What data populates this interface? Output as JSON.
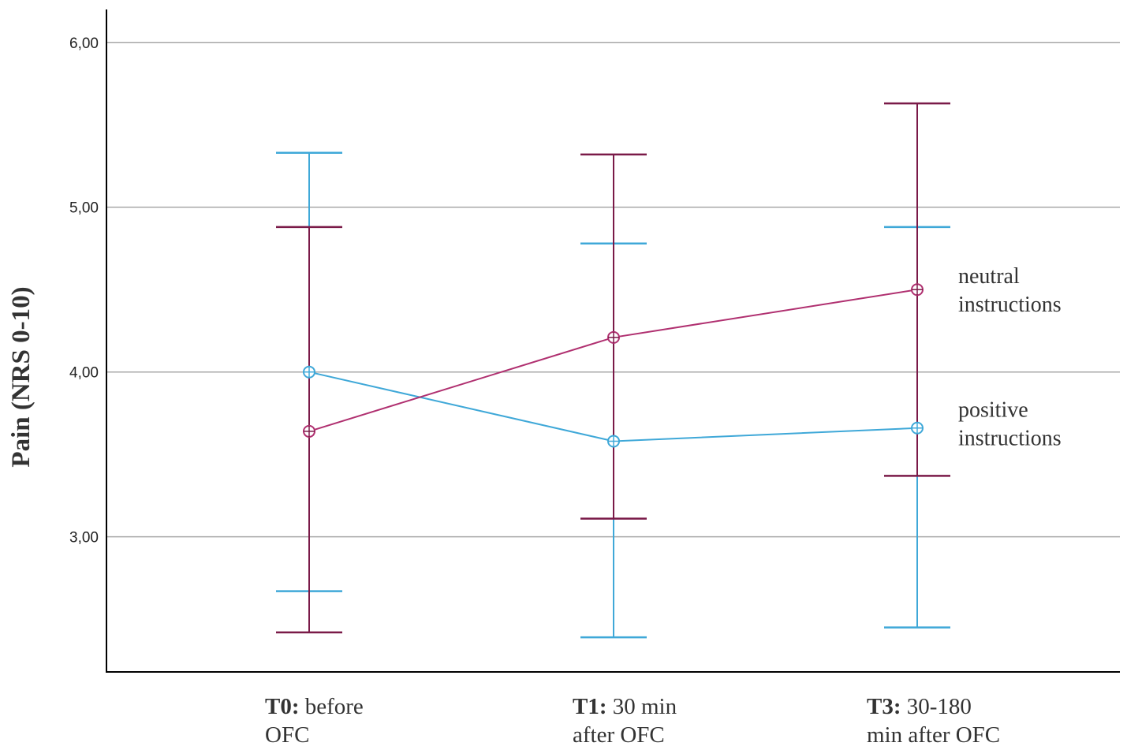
{
  "chart_data": {
    "type": "line",
    "title": "",
    "xlabel": "",
    "ylabel": "Pain (NRS 0-10)",
    "ylim": [
      2.18,
      6.2
    ],
    "yticks": [
      3.0,
      4.0,
      5.0,
      6.0
    ],
    "ytick_labels": [
      "3,00",
      "4,00",
      "5,00",
      "6,00"
    ],
    "grid": true,
    "categories": [
      {
        "bold": "T0:",
        "rest": " before",
        "line2": "OFC"
      },
      {
        "bold": "T1:",
        "rest": " 30 min",
        "line2": "after OFC"
      },
      {
        "bold": "T3:",
        "rest": " 30-180",
        "line2": "min after OFC"
      }
    ],
    "series": [
      {
        "name": "positive instructions",
        "label_lines": [
          "positive",
          "instructions"
        ],
        "color": "#3fa8d8",
        "values": [
          4.0,
          3.58,
          3.66
        ],
        "error_low": [
          2.67,
          2.39,
          2.45
        ],
        "error_high": [
          5.33,
          4.78,
          4.88
        ]
      },
      {
        "name": "neutral instructions",
        "label_lines": [
          "neutral",
          "instructions"
        ],
        "color": "#7a1a48",
        "marker_color": "#b03070",
        "values": [
          3.64,
          4.21,
          4.5
        ],
        "error_low": [
          2.42,
          3.11,
          3.37
        ],
        "error_high": [
          4.88,
          5.32,
          5.63
        ]
      }
    ]
  }
}
